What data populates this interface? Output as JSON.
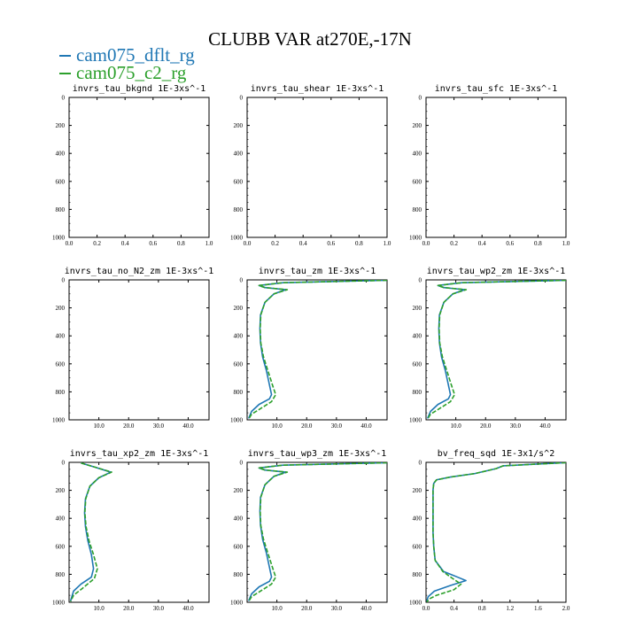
{
  "figure": {
    "title": "CLUBB VAR at270E,-17N",
    "legend": [
      {
        "name": "cam075_dflt_rg",
        "color": "#1f77b4"
      },
      {
        "name": "cam075_c2_rg",
        "color": "#2ca02c"
      }
    ]
  },
  "chart_data": [
    {
      "type": "line",
      "title": "invrs_tau_bkgnd   1E-3xs^-1",
      "xlim": [
        0,
        1
      ],
      "ylim": [
        1000,
        0
      ],
      "xticks": [
        "0.0",
        "0.2",
        "0.4",
        "0.6",
        "0.8",
        "1.0"
      ],
      "yticks": [
        "0",
        "200",
        "400",
        "600",
        "800",
        "1000"
      ],
      "series": []
    },
    {
      "type": "line",
      "title": "invrs_tau_shear   1E-3xs^-1",
      "xlim": [
        0,
        1
      ],
      "ylim": [
        1000,
        0
      ],
      "xticks": [
        "0.0",
        "0.2",
        "0.4",
        "0.6",
        "0.8",
        "1.0"
      ],
      "yticks": [
        "0",
        "200",
        "400",
        "600",
        "800",
        "1000"
      ],
      "series": []
    },
    {
      "type": "line",
      "title": "invrs_tau_sfc   1E-3xs^-1",
      "xlim": [
        0,
        1
      ],
      "ylim": [
        1000,
        0
      ],
      "xticks": [
        "0.0",
        "0.2",
        "0.4",
        "0.6",
        "0.8",
        "1.0"
      ],
      "yticks": [
        "0",
        "200",
        "400",
        "600",
        "800",
        "1000"
      ],
      "series": []
    },
    {
      "type": "line",
      "title": "invrs_tau_no_N2_zm   1E-3xs^-1",
      "xlim": [
        0,
        47
      ],
      "ylim": [
        1000,
        0
      ],
      "xticks": [
        "10.0",
        "20.0",
        "30.0",
        "40.0"
      ],
      "yticks": [
        "0",
        "200",
        "400",
        "600",
        "800",
        "1000"
      ],
      "series": []
    },
    {
      "type": "line",
      "title": "invrs_tau_zm   1E-3xs^-1",
      "xlim": [
        0,
        47
      ],
      "ylim": [
        1000,
        0
      ],
      "xticks": [
        "10.0",
        "20.0",
        "30.0",
        "40.0"
      ],
      "yticks": [
        "0",
        "200",
        "400",
        "600",
        "800",
        "1000"
      ],
      "series": [
        {
          "name": "cam075_dflt_rg",
          "x": [
            47,
            12,
            4,
            6,
            13,
            9,
            6,
            4.5,
            4.3,
            4.5,
            5.2,
            6.5,
            7.5,
            8.2,
            7.5,
            4,
            1.5,
            0.5
          ],
          "y": [
            3,
            20,
            40,
            55,
            70,
            100,
            160,
            250,
            350,
            450,
            550,
            650,
            750,
            820,
            850,
            890,
            940,
            990
          ]
        },
        {
          "name": "cam075_c2_rg",
          "x": [
            47,
            12,
            4,
            6,
            13.5,
            9,
            6,
            4.6,
            4.4,
            4.6,
            5.5,
            7,
            8.5,
            9.6,
            8.2,
            4.5,
            1.5,
            0.5
          ],
          "y": [
            3,
            20,
            40,
            55,
            70,
            100,
            160,
            250,
            350,
            450,
            550,
            650,
            750,
            820,
            870,
            920,
            960,
            995
          ]
        }
      ]
    },
    {
      "type": "line",
      "title": "invrs_tau_wp2_zm   1E-3xs^-1",
      "xlim": [
        0,
        47
      ],
      "ylim": [
        1000,
        0
      ],
      "xticks": [
        "10.0",
        "20.0",
        "30.0",
        "40.0"
      ],
      "yticks": [
        "0",
        "200",
        "400",
        "600",
        "800",
        "1000"
      ],
      "series": [
        {
          "name": "cam075_dflt_rg",
          "x": [
            47,
            12,
            4,
            6,
            13,
            9,
            6,
            4.5,
            4.3,
            4.5,
            5.2,
            6.5,
            7.5,
            8.2,
            7.5,
            4,
            1.5,
            0.5
          ],
          "y": [
            3,
            20,
            40,
            55,
            70,
            100,
            160,
            250,
            350,
            450,
            550,
            650,
            750,
            820,
            850,
            890,
            940,
            990
          ]
        },
        {
          "name": "cam075_c2_rg",
          "x": [
            47,
            12,
            4,
            6,
            13.5,
            9,
            6,
            4.6,
            4.4,
            4.6,
            5.5,
            7,
            8.5,
            9.6,
            8.2,
            4.5,
            1.5,
            0.5
          ],
          "y": [
            3,
            20,
            40,
            55,
            70,
            100,
            160,
            250,
            350,
            450,
            550,
            650,
            750,
            820,
            870,
            920,
            960,
            995
          ]
        }
      ]
    },
    {
      "type": "line",
      "title": "invrs_tau_xp2_zm   1E-3xs^-1",
      "xlim": [
        0,
        47
      ],
      "ylim": [
        1000,
        0
      ],
      "xticks": [
        "10.0",
        "20.0",
        "30.0",
        "40.0"
      ],
      "yticks": [
        "0",
        "200",
        "400",
        "600",
        "800",
        "1000"
      ],
      "series": [
        {
          "name": "cam075_dflt_rg",
          "x": [
            4,
            8,
            14,
            10,
            7,
            5.5,
            5.2,
            5.5,
            6.3,
            7.5,
            8.2,
            7.5,
            4,
            1.5,
            0.5
          ],
          "y": [
            5,
            30,
            70,
            110,
            170,
            260,
            360,
            460,
            560,
            660,
            760,
            820,
            870,
            920,
            990
          ]
        },
        {
          "name": "cam075_c2_rg",
          "x": [
            4,
            8,
            14.3,
            10,
            7,
            5.6,
            5.3,
            5.7,
            6.7,
            8.2,
            9.5,
            8.5,
            4.5,
            1.5,
            0.5
          ],
          "y": [
            5,
            30,
            70,
            110,
            170,
            260,
            360,
            460,
            560,
            660,
            760,
            830,
            900,
            950,
            995
          ]
        }
      ]
    },
    {
      "type": "line",
      "title": "invrs_tau_wp3_zm   1E-3xs^-1",
      "xlim": [
        0,
        47
      ],
      "ylim": [
        1000,
        0
      ],
      "xticks": [
        "10.0",
        "20.0",
        "30.0",
        "40.0"
      ],
      "yticks": [
        "0",
        "200",
        "400",
        "600",
        "800",
        "1000"
      ],
      "series": [
        {
          "name": "cam075_dflt_rg",
          "x": [
            47,
            12,
            4,
            6,
            13,
            9,
            6,
            4.5,
            4.3,
            4.5,
            5.2,
            6.5,
            7.5,
            8.2,
            7.5,
            4,
            1.5,
            0.5
          ],
          "y": [
            3,
            20,
            40,
            55,
            70,
            100,
            160,
            250,
            350,
            450,
            550,
            650,
            750,
            820,
            850,
            890,
            940,
            990
          ]
        },
        {
          "name": "cam075_c2_rg",
          "x": [
            47,
            12,
            4,
            6,
            13.5,
            9,
            6,
            4.6,
            4.4,
            4.6,
            5.5,
            7,
            8.5,
            9.6,
            8.2,
            4.5,
            1.5,
            0.5
          ],
          "y": [
            3,
            20,
            40,
            55,
            70,
            100,
            160,
            250,
            350,
            450,
            550,
            650,
            750,
            820,
            870,
            920,
            960,
            995
          ]
        }
      ]
    },
    {
      "type": "line",
      "title": "bv_freq_sqd   1E-3x1/s^2",
      "xlim": [
        0,
        2
      ],
      "ylim": [
        1000,
        0
      ],
      "xticks": [
        "0.0",
        "0.4",
        "0.8",
        "1.2",
        "1.6",
        "2.0"
      ],
      "yticks": [
        "0",
        "200",
        "400",
        "600",
        "800",
        "1000"
      ],
      "series": [
        {
          "name": "cam075_dflt_rg",
          "x": [
            2,
            1.1,
            1.0,
            0.7,
            0.35,
            0.15,
            0.11,
            0.1,
            0.1,
            0.1,
            0.1,
            0.11,
            0.13,
            0.25,
            0.45,
            0.57,
            0.35,
            0.12,
            0.03,
            0.01
          ],
          "y": [
            2,
            25,
            45,
            80,
            105,
            125,
            150,
            200,
            300,
            400,
            500,
            600,
            700,
            780,
            820,
            845,
            880,
            920,
            960,
            995
          ]
        },
        {
          "name": "cam075_c2_rg",
          "x": [
            2,
            1.1,
            1.0,
            0.7,
            0.35,
            0.15,
            0.11,
            0.1,
            0.1,
            0.1,
            0.1,
            0.11,
            0.13,
            0.24,
            0.38,
            0.5,
            0.4,
            0.15,
            0.05,
            0.01
          ],
          "y": [
            2,
            25,
            45,
            80,
            105,
            125,
            150,
            200,
            300,
            400,
            500,
            600,
            700,
            780,
            830,
            870,
            910,
            950,
            975,
            998
          ]
        }
      ]
    }
  ]
}
